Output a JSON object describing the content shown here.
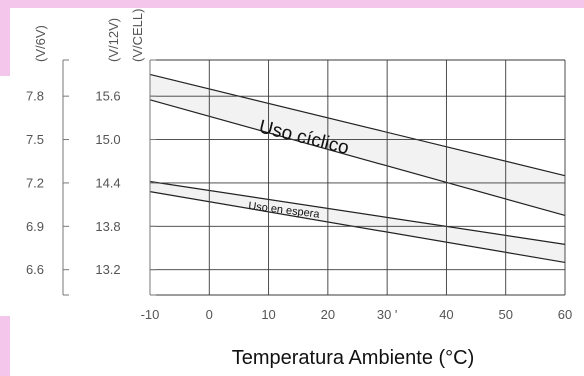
{
  "colors": {
    "background": "#f4c6ec",
    "panel": "#ffffff",
    "grid": "#3a3a3a",
    "band_fill": "#f2f2f2",
    "axis_text": "#555555"
  },
  "chart_data": {
    "type": "line",
    "title": "",
    "xlabel": "Temperatura Ambiente (°C)",
    "xlim": [
      -10,
      60
    ],
    "ylim": [
      12.85,
      16.1
    ],
    "x_ticks": [
      "-10",
      "0",
      "10",
      "20",
      "30 '",
      "40",
      "50",
      "60"
    ],
    "x_tick_values": [
      -10,
      0,
      10,
      20,
      30,
      40,
      50,
      60
    ],
    "grid": true,
    "y_axes": [
      {
        "label": "(V/6V)",
        "ticks": [
          "7.8",
          "7.5",
          "7.2",
          "6.9",
          "6.6"
        ]
      },
      {
        "label": "(V/12V)",
        "ticks": [
          "15.6",
          "15.0",
          "14.4",
          "13.8",
          "13.2"
        ]
      },
      {
        "label": "(V/CELL)",
        "ticks": []
      }
    ],
    "y_tick_values": [
      15.6,
      15.0,
      14.4,
      13.8,
      13.2
    ],
    "series": [
      {
        "name": "Uso cíclico",
        "x": [
          -10,
          60
        ],
        "upper": [
          15.9,
          14.5
        ],
        "lower": [
          15.55,
          13.95
        ]
      },
      {
        "name": "Uso en espera",
        "x": [
          -10,
          60
        ],
        "upper": [
          14.42,
          13.55
        ],
        "lower": [
          14.28,
          13.3
        ]
      }
    ]
  }
}
